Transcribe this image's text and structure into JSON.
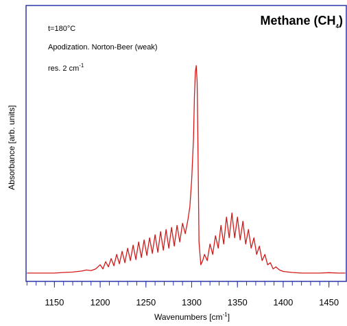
{
  "chart_data": {
    "type": "line",
    "title_parts": [
      "Methane (CH",
      "4",
      ")"
    ],
    "annotations": [
      "t=180°C",
      "Apodization. Norton-Beer (weak)"
    ],
    "resolution_parts": [
      "res. 2 cm",
      "-1"
    ],
    "x_label_parts": [
      "Wavenumbers [cm",
      "-1",
      "]"
    ],
    "y_label": "Absorbance [arb. units]",
    "xlim": [
      1119,
      1469
    ],
    "ylim": [
      -4,
      129
    ],
    "xticks": [
      1150,
      1200,
      1250,
      1300,
      1350,
      1400,
      1450
    ],
    "xminorticks": [
      1120,
      1130,
      1140,
      1150,
      1160,
      1170,
      1180,
      1190,
      1200,
      1210,
      1220,
      1230,
      1240,
      1250,
      1260,
      1270,
      1280,
      1290,
      1300,
      1310,
      1320,
      1330,
      1340,
      1350,
      1360,
      1370,
      1380,
      1390,
      1400,
      1410,
      1420,
      1430,
      1440,
      1450,
      1460
    ],
    "frame_color": "#2a35a8",
    "x": [
      1120,
      1130,
      1140,
      1150,
      1160,
      1170,
      1180,
      1185,
      1190,
      1195,
      1200,
      1203,
      1206,
      1209,
      1212,
      1215,
      1218,
      1221,
      1224,
      1227,
      1230,
      1233,
      1236,
      1239,
      1242,
      1245,
      1248,
      1251,
      1254,
      1257,
      1260,
      1263,
      1266,
      1269,
      1272,
      1275,
      1278,
      1281,
      1284,
      1287,
      1290,
      1293,
      1296,
      1298,
      1300,
      1302,
      1303,
      1304,
      1305,
      1306,
      1307,
      1308,
      1310,
      1312,
      1314,
      1317,
      1320,
      1323,
      1326,
      1329,
      1332,
      1335,
      1338,
      1341,
      1344,
      1347,
      1350,
      1353,
      1356,
      1359,
      1362,
      1365,
      1368,
      1371,
      1374,
      1377,
      1380,
      1383,
      1386,
      1389,
      1392,
      1396,
      1400,
      1410,
      1420,
      1430,
      1440,
      1450,
      1460,
      1468
    ],
    "series": [
      {
        "color": "#d41818",
        "values": [
          0,
          0,
          0,
          0,
          0.3,
          0.5,
          1,
          1.5,
          1.2,
          2,
          4,
          2,
          5.5,
          3,
          7,
          3.5,
          9,
          4.5,
          10.5,
          5,
          12,
          6,
          13.5,
          6.5,
          15,
          7.5,
          16,
          8.5,
          17,
          9.5,
          18.5,
          10,
          20,
          11,
          21,
          12,
          22,
          13,
          23,
          15,
          24,
          19,
          26,
          32,
          45,
          65,
          85,
          97,
          100,
          92,
          55,
          15,
          4,
          6,
          9,
          6,
          14,
          9,
          18,
          12,
          23,
          14,
          27,
          17,
          29,
          17,
          27,
          16,
          25,
          14,
          21,
          12,
          17,
          9,
          13,
          6,
          9,
          4,
          5,
          2,
          3,
          1.5,
          0.8,
          0.3,
          0,
          0,
          0,
          0.2,
          0,
          0
        ]
      }
    ]
  }
}
